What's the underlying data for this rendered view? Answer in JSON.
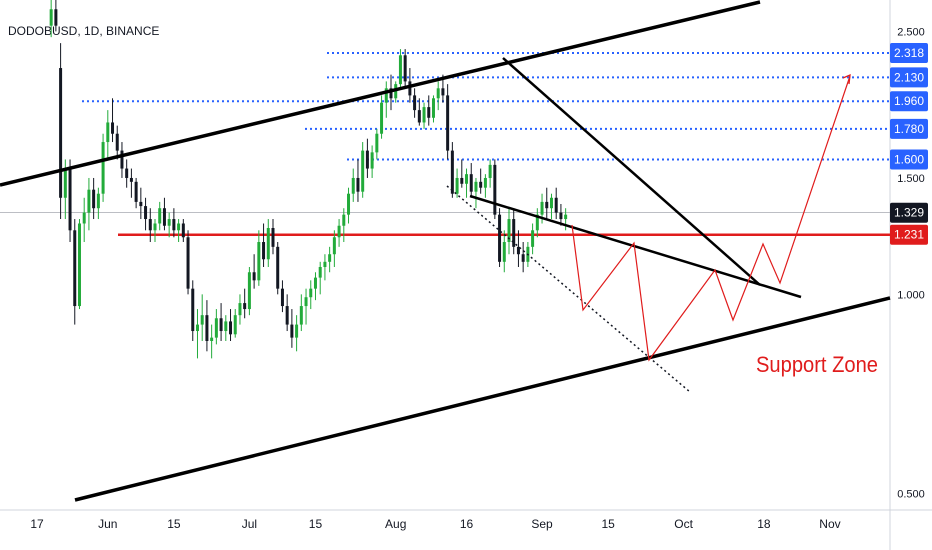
{
  "header": {
    "symbol": "DODOBUSD, 1D, BINANCE"
  },
  "chart_data": {
    "type": "candlestick",
    "symbol": "DODOBUSD",
    "interval": "1D",
    "exchange": "BINANCE",
    "y_scale": "log",
    "ylim": [
      0.48,
      2.75
    ],
    "y_ticks": [
      {
        "value": 2.5,
        "label": "2.500"
      },
      {
        "value": 1.5,
        "label": "1.500"
      },
      {
        "value": 1.0,
        "label": "1.000"
      },
      {
        "value": 0.5,
        "label": "0.500"
      }
    ],
    "x_ticks": [
      {
        "day": 0,
        "label": "17"
      },
      {
        "day": 15,
        "label": "Jun"
      },
      {
        "day": 29,
        "label": "15"
      },
      {
        "day": 45,
        "label": "Jul"
      },
      {
        "day": 59,
        "label": "15"
      },
      {
        "day": 76,
        "label": "Aug"
      },
      {
        "day": 91,
        "label": "16"
      },
      {
        "day": 107,
        "label": "Sep"
      },
      {
        "day": 121,
        "label": "15"
      },
      {
        "day": 137,
        "label": "Oct"
      },
      {
        "day": 154,
        "label": "18"
      },
      {
        "day": 168,
        "label": "Nov"
      }
    ],
    "price_levels": [
      {
        "value": 2.318,
        "label": "2.318",
        "color": "#2962ff"
      },
      {
        "value": 2.13,
        "label": "2.130",
        "color": "#2962ff"
      },
      {
        "value": 1.96,
        "label": "1.960",
        "color": "#2962ff"
      },
      {
        "value": 1.78,
        "label": "1.780",
        "color": "#2962ff"
      },
      {
        "value": 1.6,
        "label": "1.600",
        "color": "#2962ff"
      },
      {
        "value": 1.329,
        "label": "1.329",
        "color": "#131722"
      },
      {
        "value": 1.231,
        "label": "1.231",
        "color": "#e01c1c"
      }
    ],
    "annotation": {
      "text": "Support Zone",
      "color": "#e01c1c"
    },
    "colors": {
      "up": "#22ab3a",
      "down": "#131722",
      "support": "#e01c1c",
      "fib": "#2962ff",
      "trend": "#000000"
    },
    "candles": [
      [
        2.55,
        2.8,
        2.45,
        2.7
      ],
      [
        2.7,
        2.8,
        2.5,
        2.55
      ],
      [
        2.2,
        2.4,
        1.3,
        1.4
      ],
      [
        1.4,
        1.6,
        1.3,
        1.55
      ],
      [
        1.55,
        1.6,
        1.2,
        1.25
      ],
      [
        1.25,
        1.3,
        0.9,
        0.96
      ],
      [
        0.96,
        1.3,
        0.95,
        1.28
      ],
      [
        1.28,
        1.4,
        1.2,
        1.33
      ],
      [
        1.33,
        1.5,
        1.25,
        1.44
      ],
      [
        1.44,
        1.5,
        1.3,
        1.35
      ],
      [
        1.35,
        1.45,
        1.3,
        1.42
      ],
      [
        1.42,
        1.75,
        1.38,
        1.7
      ],
      [
        1.7,
        1.9,
        1.6,
        1.82
      ],
      [
        1.82,
        1.98,
        1.7,
        1.75
      ],
      [
        1.75,
        1.8,
        1.6,
        1.65
      ],
      [
        1.65,
        1.7,
        1.5,
        1.55
      ],
      [
        1.55,
        1.6,
        1.45,
        1.5
      ],
      [
        1.5,
        1.55,
        1.4,
        1.48
      ],
      [
        1.48,
        1.5,
        1.35,
        1.38
      ],
      [
        1.38,
        1.45,
        1.3,
        1.36
      ],
      [
        1.36,
        1.4,
        1.25,
        1.3
      ],
      [
        1.3,
        1.35,
        1.2,
        1.25
      ],
      [
        1.25,
        1.3,
        1.2,
        1.28
      ],
      [
        1.28,
        1.38,
        1.25,
        1.35
      ],
      [
        1.35,
        1.4,
        1.25,
        1.27
      ],
      [
        1.27,
        1.33,
        1.22,
        1.3
      ],
      [
        1.3,
        1.35,
        1.22,
        1.25
      ],
      [
        1.25,
        1.3,
        1.2,
        1.28
      ],
      [
        1.28,
        1.3,
        1.2,
        1.22
      ],
      [
        1.22,
        1.25,
        1.0,
        1.02
      ],
      [
        1.02,
        1.05,
        0.85,
        0.88
      ],
      [
        0.88,
        0.95,
        0.8,
        0.9
      ],
      [
        0.9,
        1.0,
        0.85,
        0.93
      ],
      [
        0.93,
        0.98,
        0.82,
        0.85
      ],
      [
        0.85,
        0.9,
        0.8,
        0.86
      ],
      [
        0.86,
        0.95,
        0.84,
        0.92
      ],
      [
        0.92,
        0.97,
        0.85,
        0.88
      ],
      [
        0.88,
        0.93,
        0.85,
        0.91
      ],
      [
        0.91,
        0.95,
        0.85,
        0.87
      ],
      [
        0.87,
        0.95,
        0.86,
        0.93
      ],
      [
        0.93,
        1.0,
        0.9,
        0.97
      ],
      [
        0.97,
        1.02,
        0.92,
        0.95
      ],
      [
        0.95,
        1.1,
        0.93,
        1.08
      ],
      [
        1.08,
        1.15,
        1.02,
        1.05
      ],
      [
        1.05,
        1.25,
        1.03,
        1.2
      ],
      [
        1.2,
        1.28,
        1.1,
        1.13
      ],
      [
        1.13,
        1.3,
        1.1,
        1.26
      ],
      [
        1.26,
        1.3,
        1.15,
        1.18
      ],
      [
        1.18,
        1.2,
        1.0,
        1.02
      ],
      [
        1.02,
        1.05,
        0.94,
        0.96
      ],
      [
        0.96,
        1.0,
        0.88,
        0.9
      ],
      [
        0.9,
        0.95,
        0.83,
        0.86
      ],
      [
        0.86,
        0.93,
        0.82,
        0.9
      ],
      [
        0.9,
        1.0,
        0.88,
        0.96
      ],
      [
        0.96,
        1.02,
        0.9,
        0.99
      ],
      [
        0.99,
        1.05,
        0.95,
        1.02
      ],
      [
        1.02,
        1.08,
        0.98,
        1.06
      ],
      [
        1.06,
        1.12,
        1.0,
        1.1
      ],
      [
        1.1,
        1.15,
        1.05,
        1.12
      ],
      [
        1.12,
        1.18,
        1.08,
        1.15
      ],
      [
        1.15,
        1.25,
        1.1,
        1.22
      ],
      [
        1.22,
        1.3,
        1.18,
        1.27
      ],
      [
        1.27,
        1.35,
        1.2,
        1.32
      ],
      [
        1.32,
        1.45,
        1.28,
        1.42
      ],
      [
        1.42,
        1.55,
        1.38,
        1.5
      ],
      [
        1.5,
        1.6,
        1.38,
        1.43
      ],
      [
        1.43,
        1.7,
        1.4,
        1.65
      ],
      [
        1.65,
        1.72,
        1.5,
        1.55
      ],
      [
        1.55,
        1.68,
        1.5,
        1.64
      ],
      [
        1.64,
        1.78,
        1.6,
        1.75
      ],
      [
        1.75,
        2.0,
        1.72,
        1.95
      ],
      [
        1.95,
        2.1,
        1.85,
        2.05
      ],
      [
        2.05,
        2.15,
        1.9,
        1.98
      ],
      [
        1.98,
        2.1,
        1.95,
        2.08
      ],
      [
        2.08,
        2.35,
        2.05,
        2.3
      ],
      [
        2.3,
        2.35,
        2.05,
        2.1
      ],
      [
        2.1,
        2.2,
        1.95,
        2.0
      ],
      [
        2.0,
        2.05,
        1.85,
        1.9
      ],
      [
        1.9,
        1.98,
        1.8,
        1.82
      ],
      [
        1.82,
        1.95,
        1.78,
        1.92
      ],
      [
        1.92,
        2.0,
        1.8,
        1.85
      ],
      [
        1.85,
        2.0,
        1.82,
        1.98
      ],
      [
        1.98,
        2.1,
        1.9,
        2.05
      ],
      [
        2.05,
        2.15,
        1.95,
        2.0
      ],
      [
        2.0,
        2.08,
        1.6,
        1.65
      ],
      [
        1.65,
        1.7,
        1.4,
        1.42
      ],
      [
        1.42,
        1.55,
        1.4,
        1.5
      ],
      [
        1.5,
        1.6,
        1.45,
        1.47
      ],
      [
        1.47,
        1.55,
        1.4,
        1.52
      ],
      [
        1.52,
        1.58,
        1.4,
        1.43
      ],
      [
        1.43,
        1.5,
        1.35,
        1.48
      ],
      [
        1.48,
        1.55,
        1.42,
        1.45
      ],
      [
        1.45,
        1.52,
        1.4,
        1.5
      ],
      [
        1.5,
        1.6,
        1.45,
        1.57
      ],
      [
        1.57,
        1.6,
        1.3,
        1.32
      ],
      [
        1.32,
        1.35,
        1.1,
        1.12
      ],
      [
        1.12,
        1.25,
        1.08,
        1.2
      ],
      [
        1.2,
        1.35,
        1.15,
        1.3
      ],
      [
        1.3,
        1.35,
        1.15,
        1.18
      ],
      [
        1.18,
        1.25,
        1.1,
        1.15
      ],
      [
        1.15,
        1.2,
        1.08,
        1.12
      ],
      [
        1.12,
        1.2,
        1.1,
        1.18
      ],
      [
        1.18,
        1.28,
        1.15,
        1.25
      ],
      [
        1.25,
        1.35,
        1.22,
        1.32
      ],
      [
        1.32,
        1.42,
        1.28,
        1.38
      ],
      [
        1.38,
        1.45,
        1.3,
        1.35
      ],
      [
        1.35,
        1.42,
        1.3,
        1.4
      ],
      [
        1.4,
        1.45,
        1.3,
        1.33
      ],
      [
        1.33,
        1.37,
        1.27,
        1.3
      ],
      [
        1.3,
        1.35,
        1.25,
        1.32
      ]
    ]
  }
}
